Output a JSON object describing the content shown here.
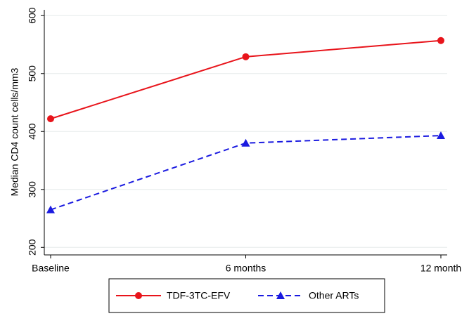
{
  "chart_data": {
    "type": "line",
    "y_label": "Median CD4 count cells/mm3",
    "categories": [
      "Baseline",
      "6 months",
      "12 month"
    ],
    "series": [
      {
        "name": "TDF-3TC-EFV",
        "color": "#e8141b",
        "marker": "circle",
        "dash": "solid",
        "values": [
          422,
          529,
          557
        ]
      },
      {
        "name": "Other ARTs",
        "color": "#1a1ae0",
        "marker": "triangle",
        "dash": "dashed",
        "values": [
          265,
          380,
          393
        ]
      }
    ],
    "ylim": [
      187,
      610
    ],
    "yticks": [
      200,
      300,
      400,
      500,
      600
    ],
    "grid": true,
    "legend": "bottom"
  }
}
